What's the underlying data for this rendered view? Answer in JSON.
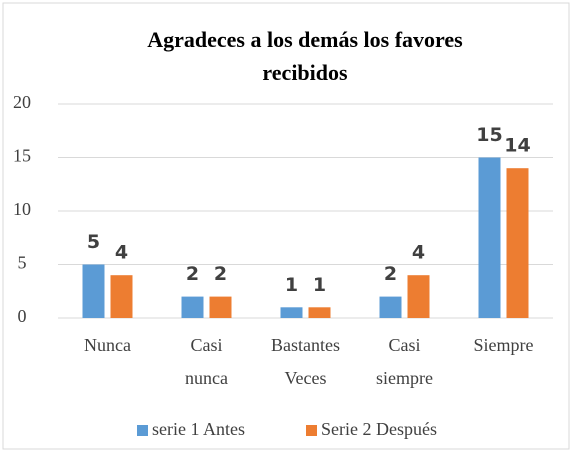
{
  "chart_data": {
    "type": "bar",
    "title": "Agradeces a los demás los favores recibidos",
    "categories": [
      "Nunca",
      "Casi nunca",
      "Bastantes Veces",
      "Casi siempre",
      "Siempre"
    ],
    "series": [
      {
        "name": "serie 1 Antes",
        "color": "#5b9bd5",
        "values": [
          5,
          2,
          1,
          2,
          15
        ]
      },
      {
        "name": "Serie 2 Después",
        "color": "#ed7d31",
        "values": [
          4,
          2,
          1,
          4,
          14
        ]
      }
    ],
    "ylim": [
      0,
      20
    ],
    "yticks": [
      0,
      5,
      10,
      15,
      20
    ],
    "grid": true,
    "legend": "bottom"
  }
}
